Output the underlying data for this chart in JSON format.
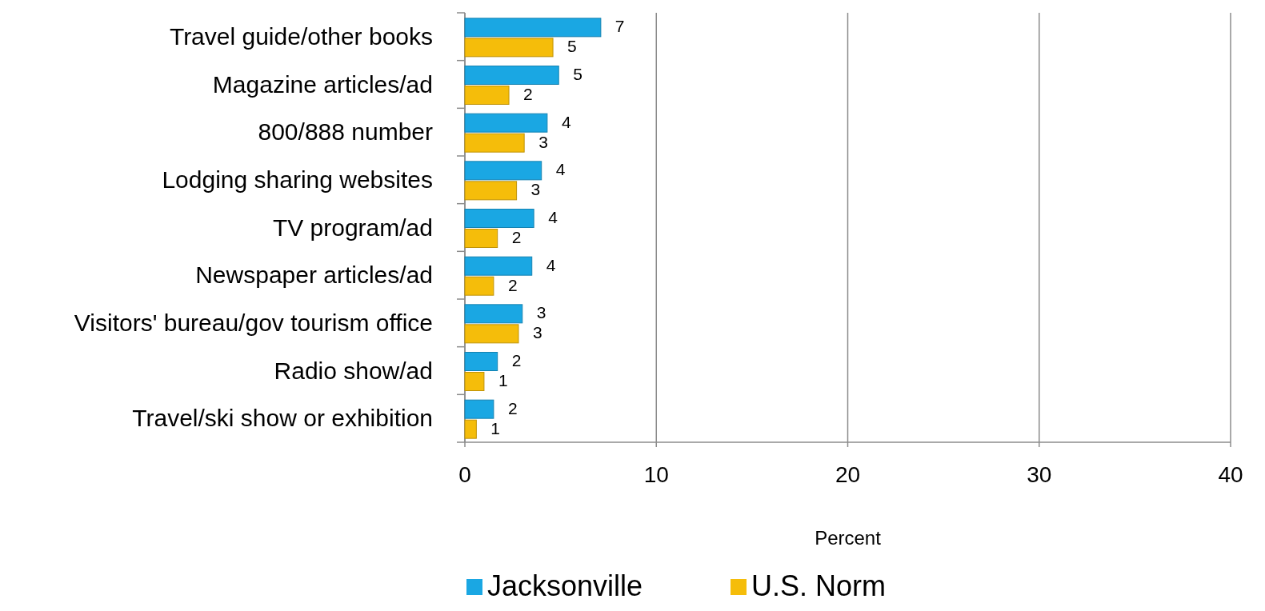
{
  "chart_data": {
    "type": "bar",
    "orientation": "horizontal",
    "xlabel": "Percent",
    "categories": [
      "Travel guide/other books",
      "Magazine articles/ad",
      "800/888 number",
      "Lodging sharing websites",
      "TV program/ad",
      "Newspaper articles/ad",
      "Visitors' bureau/gov tourism office",
      "Radio show/ad",
      "Travel/ski show or exhibition"
    ],
    "series": [
      {
        "name": "Jacksonville",
        "color": "#1aa7e3",
        "values": [
          7.1,
          4.9,
          4.3,
          4.0,
          3.6,
          3.5,
          3.0,
          1.7,
          1.5
        ],
        "value_labels": [
          "7",
          "5",
          "4",
          "4",
          "4",
          "4",
          "3",
          "2",
          "2"
        ]
      },
      {
        "name": "U.S. Norm",
        "color": "#f5bd0a",
        "values": [
          4.6,
          2.3,
          3.1,
          2.7,
          1.7,
          1.5,
          2.8,
          1.0,
          0.6
        ],
        "value_labels": [
          "5",
          "2",
          "3",
          "3",
          "2",
          "2",
          "3",
          "1",
          "1"
        ]
      }
    ],
    "xlim": [
      0,
      40
    ],
    "xticks": [
      0,
      10,
      20,
      30,
      40
    ],
    "grid": "x",
    "legend": "bottom"
  }
}
